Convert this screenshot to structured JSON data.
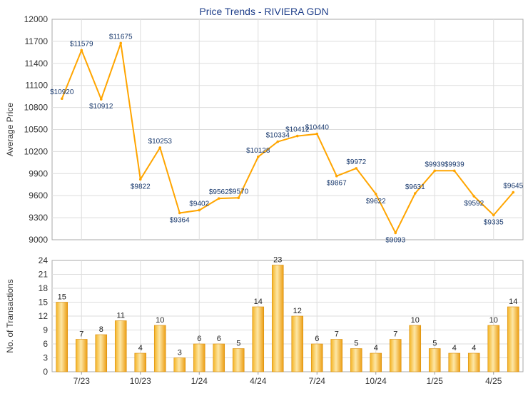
{
  "chart_data": [
    {
      "type": "line",
      "title": "Price Trends - RIVIERA GDN",
      "xlabel": "",
      "ylabel": "Average Price",
      "ylim": [
        9000,
        12000
      ],
      "yticks": [
        9000,
        9300,
        9600,
        9900,
        10200,
        10500,
        10800,
        11100,
        11400,
        11700,
        12000
      ],
      "grid": true,
      "line_color": "#ffa500",
      "label_color": "#1a3a6e",
      "value_prefix": "$",
      "series": [
        {
          "values": [
            10920,
            11579,
            10912,
            11675,
            9822,
            10253,
            9364,
            9402,
            9562,
            9570,
            10128,
            10334,
            10412,
            10440,
            9867,
            9972,
            9622,
            9093,
            9631,
            9939,
            9939,
            9592,
            9335,
            9645
          ]
        }
      ]
    },
    {
      "type": "bar",
      "title": "",
      "xlabel": "",
      "ylabel": "No. of Transactions",
      "ylim": [
        0,
        24
      ],
      "yticks": [
        0,
        3,
        6,
        9,
        12,
        15,
        18,
        21,
        24
      ],
      "grid": true,
      "bar_color": "#f0a81e",
      "x_tick_labels": [
        "7/23",
        "10/23",
        "1/24",
        "4/24",
        "7/24",
        "10/24",
        "1/25",
        "4/25"
      ],
      "values": [
        15,
        7,
        8,
        11,
        4,
        10,
        3,
        6,
        6,
        5,
        14,
        23,
        12,
        6,
        7,
        5,
        4,
        7,
        10,
        5,
        4,
        4,
        10,
        14
      ]
    }
  ]
}
